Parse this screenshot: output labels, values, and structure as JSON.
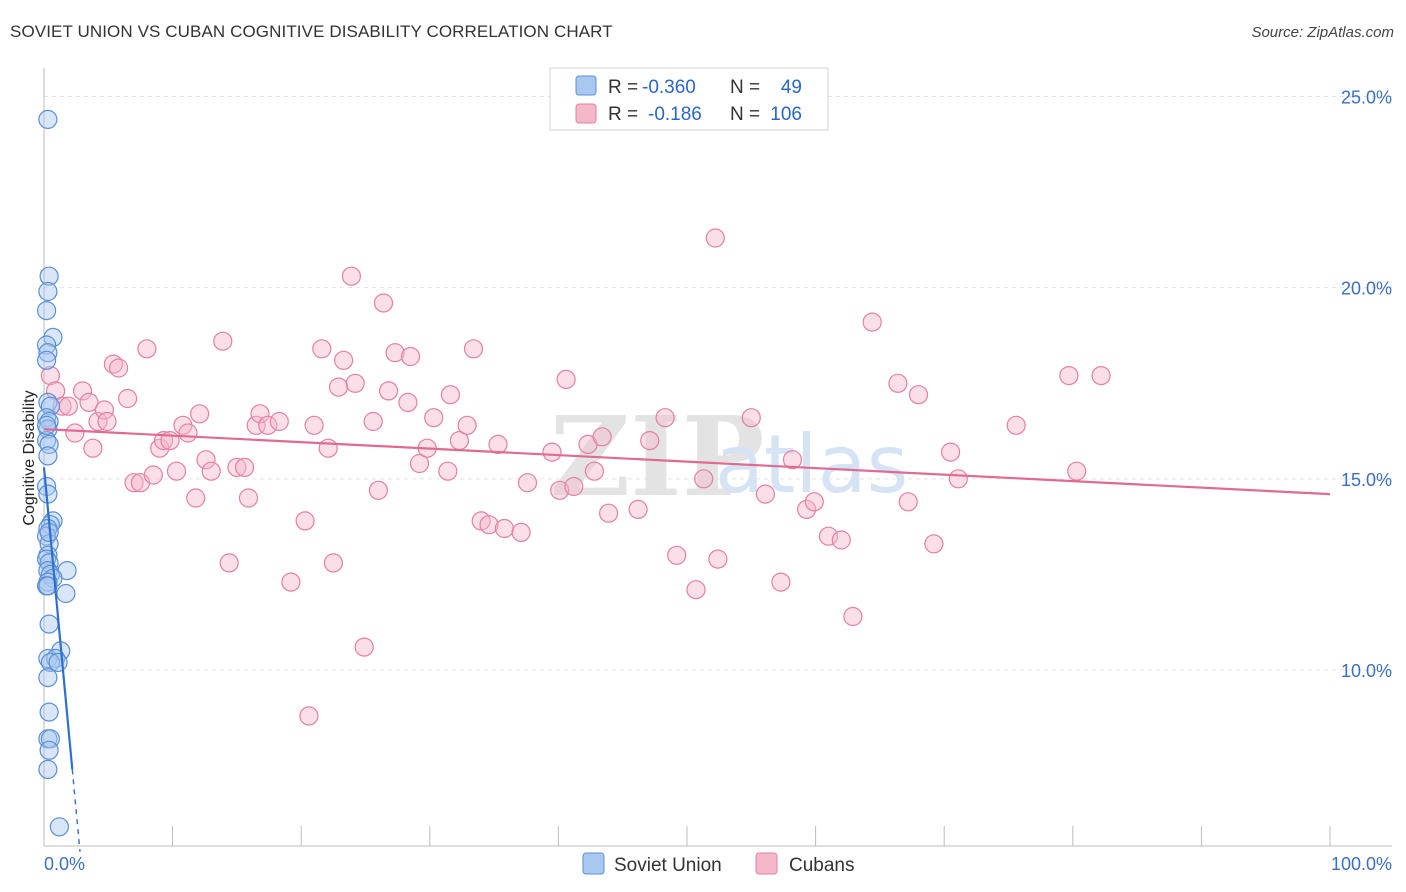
{
  "title": "SOVIET UNION VS CUBAN COGNITIVE DISABILITY CORRELATION CHART",
  "source": "Source: ZipAtlas.com",
  "colors": {
    "soviet_fill": "#a8c8f0",
    "soviet_stroke": "#5b8fd6",
    "soviet_line": "#2f6fd0",
    "cuban_fill": "#f5b8cb",
    "cuban_stroke": "#e57fa3",
    "cuban_line": "#e06a94",
    "tick_text": "#3a6fc4",
    "grid": "#e2e2e2"
  },
  "legend": {
    "rows": [
      {
        "r_label": "R = ",
        "r_value": "-0.360",
        "n_label": "N = ",
        "n_value": "49"
      },
      {
        "r_label": "R = ",
        "r_value": "-0.186",
        "n_label": "N = ",
        "n_value": "106"
      }
    ]
  },
  "watermark": {
    "zip": "ZIP",
    "atlas": "atlas"
  },
  "chart_data": {
    "type": "scatter",
    "title": "SOVIET UNION VS CUBAN COGNITIVE DISABILITY CORRELATION CHART",
    "xlabel": "",
    "ylabel": "Cognitive Disability",
    "xlim": [
      0,
      100
    ],
    "ylim": [
      5,
      26
    ],
    "x_tick_labels": [
      "0.0%",
      "100.0%"
    ],
    "y_ticks": [
      10,
      15,
      20,
      25
    ],
    "y_tick_labels": [
      "10.0%",
      "15.0%",
      "20.0%",
      "25.0%"
    ],
    "legend_position": "bottom",
    "series": [
      {
        "name": "Soviet Union",
        "r": -0.36,
        "n": 49,
        "trend": {
          "x0": 0.0,
          "y0": 15.3,
          "x1": 2.2,
          "y1": 7.4,
          "dashed_to_x": 2.8
        },
        "points": [
          [
            0.3,
            24.4
          ],
          [
            0.4,
            20.3
          ],
          [
            0.3,
            19.9
          ],
          [
            0.2,
            19.4
          ],
          [
            0.7,
            18.7
          ],
          [
            0.2,
            18.5
          ],
          [
            0.3,
            18.3
          ],
          [
            0.2,
            18.1
          ],
          [
            0.3,
            17.0
          ],
          [
            0.5,
            16.9
          ],
          [
            0.2,
            16.6
          ],
          [
            0.4,
            16.5
          ],
          [
            0.3,
            16.3
          ],
          [
            0.2,
            16.0
          ],
          [
            0.4,
            15.9
          ],
          [
            0.3,
            15.6
          ],
          [
            0.2,
            14.8
          ],
          [
            0.3,
            14.6
          ],
          [
            0.7,
            13.9
          ],
          [
            0.5,
            13.8
          ],
          [
            0.3,
            13.7
          ],
          [
            0.2,
            13.5
          ],
          [
            0.4,
            13.3
          ],
          [
            0.3,
            13.0
          ],
          [
            0.2,
            12.9
          ],
          [
            0.4,
            12.8
          ],
          [
            0.3,
            12.6
          ],
          [
            1.8,
            12.6
          ],
          [
            0.5,
            12.5
          ],
          [
            0.7,
            12.4
          ],
          [
            0.3,
            12.3
          ],
          [
            0.2,
            12.2
          ],
          [
            1.7,
            12.0
          ],
          [
            0.4,
            11.2
          ],
          [
            1.3,
            10.5
          ],
          [
            0.3,
            10.3
          ],
          [
            0.9,
            10.3
          ],
          [
            0.5,
            10.2
          ],
          [
            1.1,
            10.2
          ],
          [
            0.3,
            9.8
          ],
          [
            0.4,
            8.9
          ],
          [
            0.3,
            8.2
          ],
          [
            0.5,
            8.2
          ],
          [
            0.4,
            7.9
          ],
          [
            0.3,
            7.4
          ],
          [
            1.2,
            5.9
          ],
          [
            0.2,
            16.4
          ],
          [
            0.4,
            13.6
          ],
          [
            0.3,
            12.2
          ]
        ]
      },
      {
        "name": "Cubans",
        "r": -0.186,
        "n": 106,
        "trend": {
          "x0": 0.0,
          "y0": 16.3,
          "x1": 100.0,
          "y1": 14.6
        },
        "points": [
          [
            0.5,
            17.7
          ],
          [
            0.9,
            17.3
          ],
          [
            1.4,
            16.9
          ],
          [
            1.9,
            16.9
          ],
          [
            2.4,
            16.2
          ],
          [
            3.0,
            17.3
          ],
          [
            3.5,
            17.0
          ],
          [
            3.8,
            15.8
          ],
          [
            4.2,
            16.5
          ],
          [
            4.7,
            16.8
          ],
          [
            5.4,
            18.0
          ],
          [
            5.8,
            17.9
          ],
          [
            6.5,
            17.1
          ],
          [
            7.0,
            14.9
          ],
          [
            7.5,
            14.9
          ],
          [
            8.0,
            18.4
          ],
          [
            8.5,
            15.1
          ],
          [
            9.0,
            15.8
          ],
          [
            9.3,
            16.0
          ],
          [
            9.8,
            16.0
          ],
          [
            10.3,
            15.2
          ],
          [
            10.8,
            16.4
          ],
          [
            11.2,
            16.2
          ],
          [
            11.8,
            14.5
          ],
          [
            12.1,
            16.7
          ],
          [
            12.6,
            15.5
          ],
          [
            13.0,
            15.2
          ],
          [
            13.9,
            18.6
          ],
          [
            14.4,
            12.8
          ],
          [
            15.0,
            15.3
          ],
          [
            15.6,
            15.3
          ],
          [
            15.9,
            14.5
          ],
          [
            16.5,
            16.4
          ],
          [
            16.8,
            16.7
          ],
          [
            17.4,
            16.4
          ],
          [
            18.3,
            16.5
          ],
          [
            19.2,
            12.3
          ],
          [
            20.3,
            13.9
          ],
          [
            20.6,
            8.8
          ],
          [
            21.0,
            16.4
          ],
          [
            21.6,
            18.4
          ],
          [
            22.1,
            15.8
          ],
          [
            22.5,
            12.8
          ],
          [
            22.9,
            17.4
          ],
          [
            23.3,
            18.1
          ],
          [
            23.9,
            20.3
          ],
          [
            24.2,
            17.5
          ],
          [
            24.9,
            10.6
          ],
          [
            25.6,
            16.5
          ],
          [
            26.0,
            14.7
          ],
          [
            26.4,
            19.6
          ],
          [
            26.8,
            17.3
          ],
          [
            27.3,
            18.3
          ],
          [
            28.3,
            17.0
          ],
          [
            28.5,
            18.2
          ],
          [
            29.2,
            15.4
          ],
          [
            29.8,
            15.8
          ],
          [
            30.3,
            16.6
          ],
          [
            31.4,
            15.2
          ],
          [
            31.6,
            17.2
          ],
          [
            32.3,
            16.0
          ],
          [
            32.9,
            16.4
          ],
          [
            33.4,
            18.4
          ],
          [
            34.0,
            13.9
          ],
          [
            34.6,
            13.8
          ],
          [
            35.3,
            15.9
          ],
          [
            35.8,
            13.7
          ],
          [
            37.1,
            13.6
          ],
          [
            37.6,
            14.9
          ],
          [
            39.5,
            15.7
          ],
          [
            40.1,
            14.7
          ],
          [
            40.6,
            17.6
          ],
          [
            41.2,
            14.8
          ],
          [
            42.3,
            15.9
          ],
          [
            42.8,
            15.2
          ],
          [
            43.4,
            16.1
          ],
          [
            43.9,
            14.1
          ],
          [
            46.2,
            14.2
          ],
          [
            47.1,
            16.0
          ],
          [
            48.3,
            16.6
          ],
          [
            49.2,
            13.0
          ],
          [
            50.7,
            12.1
          ],
          [
            51.3,
            15.0
          ],
          [
            52.4,
            12.9
          ],
          [
            55.0,
            16.6
          ],
          [
            56.1,
            14.6
          ],
          [
            57.3,
            12.3
          ],
          [
            58.2,
            15.5
          ],
          [
            59.3,
            14.2
          ],
          [
            59.9,
            14.4
          ],
          [
            61.0,
            13.5
          ],
          [
            62.0,
            13.4
          ],
          [
            62.9,
            11.4
          ],
          [
            64.4,
            19.1
          ],
          [
            66.4,
            17.5
          ],
          [
            67.2,
            14.4
          ],
          [
            68.0,
            17.2
          ],
          [
            69.2,
            13.3
          ],
          [
            70.5,
            15.7
          ],
          [
            71.1,
            15.0
          ],
          [
            75.6,
            16.4
          ],
          [
            79.7,
            17.7
          ],
          [
            80.3,
            15.2
          ],
          [
            82.2,
            17.7
          ],
          [
            52.2,
            21.3
          ],
          [
            4.9,
            16.5
          ]
        ]
      }
    ]
  }
}
